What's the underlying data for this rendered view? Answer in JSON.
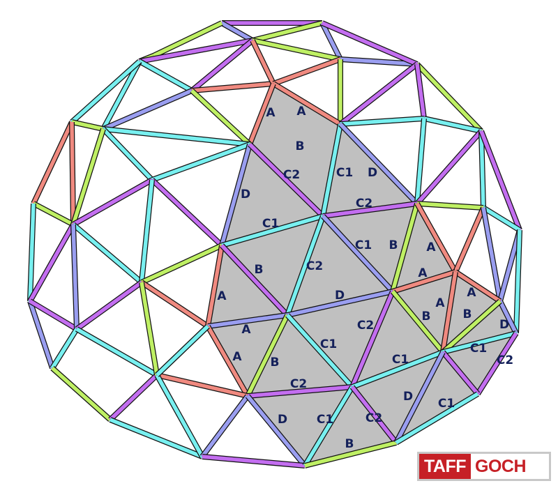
{
  "diagram": {
    "colors": {
      "A": "#f08a80",
      "B": "#bff064",
      "C1": "#78f0f0",
      "C2": "#c36ef0",
      "D": "#9a9ef0",
      "panel_fill": "#c0c0c0",
      "label_color": "#14205a"
    },
    "strut_labels": [
      {
        "id": "l1",
        "text": "A"
      },
      {
        "id": "l2",
        "text": "A"
      },
      {
        "id": "l3",
        "text": "B"
      },
      {
        "id": "l4",
        "text": "C2"
      },
      {
        "id": "l5",
        "text": "C1"
      },
      {
        "id": "l6",
        "text": "D"
      },
      {
        "id": "l7",
        "text": "D"
      },
      {
        "id": "l8",
        "text": "C2"
      },
      {
        "id": "l9",
        "text": "C1"
      },
      {
        "id": "l10",
        "text": "C1"
      },
      {
        "id": "l11",
        "text": "B"
      },
      {
        "id": "l12",
        "text": "A"
      },
      {
        "id": "l13",
        "text": "B"
      },
      {
        "id": "l14",
        "text": "C2"
      },
      {
        "id": "l15",
        "text": "A"
      },
      {
        "id": "l16",
        "text": "A"
      },
      {
        "id": "l17",
        "text": "A"
      },
      {
        "id": "l18",
        "text": "D"
      },
      {
        "id": "l19",
        "text": "A"
      },
      {
        "id": "l20",
        "text": "B"
      },
      {
        "id": "l21",
        "text": "B"
      },
      {
        "id": "l22",
        "text": "D"
      },
      {
        "id": "l23",
        "text": "A"
      },
      {
        "id": "l24",
        "text": "C2"
      },
      {
        "id": "l25",
        "text": "C1"
      },
      {
        "id": "l26",
        "text": "A"
      },
      {
        "id": "l27",
        "text": "B"
      },
      {
        "id": "l28",
        "text": "C1"
      },
      {
        "id": "l29",
        "text": "C1"
      },
      {
        "id": "l30",
        "text": "C2"
      },
      {
        "id": "l31",
        "text": "C2"
      },
      {
        "id": "l32",
        "text": "D"
      },
      {
        "id": "l33",
        "text": "C1"
      },
      {
        "id": "l34",
        "text": "D"
      },
      {
        "id": "l35",
        "text": "C1"
      },
      {
        "id": "l36",
        "text": "C2"
      },
      {
        "id": "l37",
        "text": "B"
      }
    ]
  },
  "logo": {
    "word1": "TAFF",
    "word2": "GOCH"
  }
}
